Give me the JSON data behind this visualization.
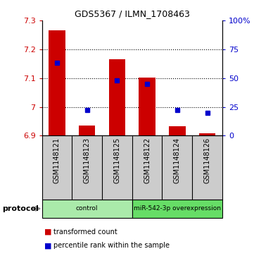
{
  "title": "GDS5367 / ILMN_1708463",
  "samples": [
    "GSM1148121",
    "GSM1148123",
    "GSM1148125",
    "GSM1148122",
    "GSM1148124",
    "GSM1148126"
  ],
  "transformed_counts": [
    7.265,
    6.935,
    7.165,
    7.102,
    6.932,
    6.908
  ],
  "percentile_ranks": [
    63,
    22,
    48,
    45,
    22,
    20
  ],
  "bar_bottom": 6.9,
  "ylim_left": [
    6.9,
    7.3
  ],
  "ylim_right": [
    0,
    100
  ],
  "yticks_left": [
    6.9,
    7.0,
    7.1,
    7.2,
    7.3
  ],
  "ytick_labels_left": [
    "6.9",
    "7",
    "7.1",
    "7.2",
    "7.3"
  ],
  "yticks_right": [
    0,
    25,
    50,
    75,
    100
  ],
  "ytick_labels_right": [
    "0",
    "25",
    "50",
    "75",
    "100%"
  ],
  "bar_color": "#cc0000",
  "dot_color": "#0000cc",
  "bar_width": 0.55,
  "groups": [
    {
      "label": "control",
      "indices": [
        0,
        1,
        2
      ],
      "color": "#aaeaaa"
    },
    {
      "label": "miR-542-3p overexpression",
      "indices": [
        3,
        4,
        5
      ],
      "color": "#66dd66"
    }
  ],
  "protocol_label": "protocol",
  "legend_bar_label": "transformed count",
  "legend_dot_label": "percentile rank within the sample",
  "bg_color": "#ffffff",
  "plot_bg": "#ffffff",
  "tick_color_left": "#cc0000",
  "tick_color_right": "#0000cc",
  "sample_bg_color": "#cccccc",
  "grid_lines": [
    7.0,
    7.1,
    7.2
  ]
}
